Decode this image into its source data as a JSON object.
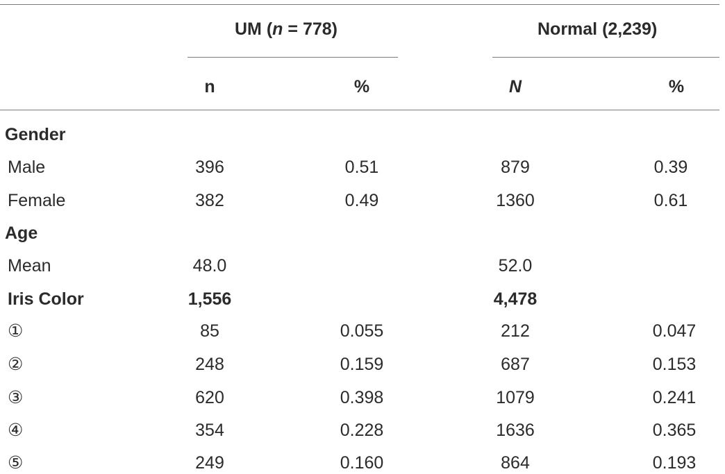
{
  "header": {
    "group1": {
      "label": "UM",
      "n_label": "n",
      "eq": "= 778)"
    },
    "group2": {
      "label": "Normal (2,239)"
    },
    "col1": "n",
    "col2": "%",
    "col3": "N",
    "col4": "%"
  },
  "sections": {
    "gender": {
      "title": "Gender",
      "rows": [
        {
          "label": "Male",
          "um_n": "396",
          "um_pct": "0.51",
          "normal_n": "879",
          "normal_pct": "0.39"
        },
        {
          "label": "Female",
          "um_n": "382",
          "um_pct": "0.49",
          "normal_n": "1360",
          "normal_pct": "0.61"
        }
      ]
    },
    "age": {
      "title": "Age",
      "rows": [
        {
          "label": "Mean",
          "um_n": "48.0",
          "normal_n": "52.0"
        }
      ]
    },
    "iris": {
      "title": "Iris Color",
      "um_total": "1,556",
      "normal_total": "4,478",
      "rows": [
        {
          "label": "①",
          "um_n": "85",
          "um_pct": "0.055",
          "normal_n": "212",
          "normal_pct": "0.047"
        },
        {
          "label": "②",
          "um_n": "248",
          "um_pct": "0.159",
          "normal_n": "687",
          "normal_pct": "0.153"
        },
        {
          "label": "③",
          "um_n": "620",
          "um_pct": "0.398",
          "normal_n": "1079",
          "normal_pct": "0.241"
        },
        {
          "label": "④",
          "um_n": "354",
          "um_pct": "0.228",
          "normal_n": "1636",
          "normal_pct": "0.365"
        },
        {
          "label": "⑤",
          "um_n": "249",
          "um_pct": "0.160",
          "normal_n": "864",
          "normal_pct": "0.193"
        }
      ]
    }
  }
}
